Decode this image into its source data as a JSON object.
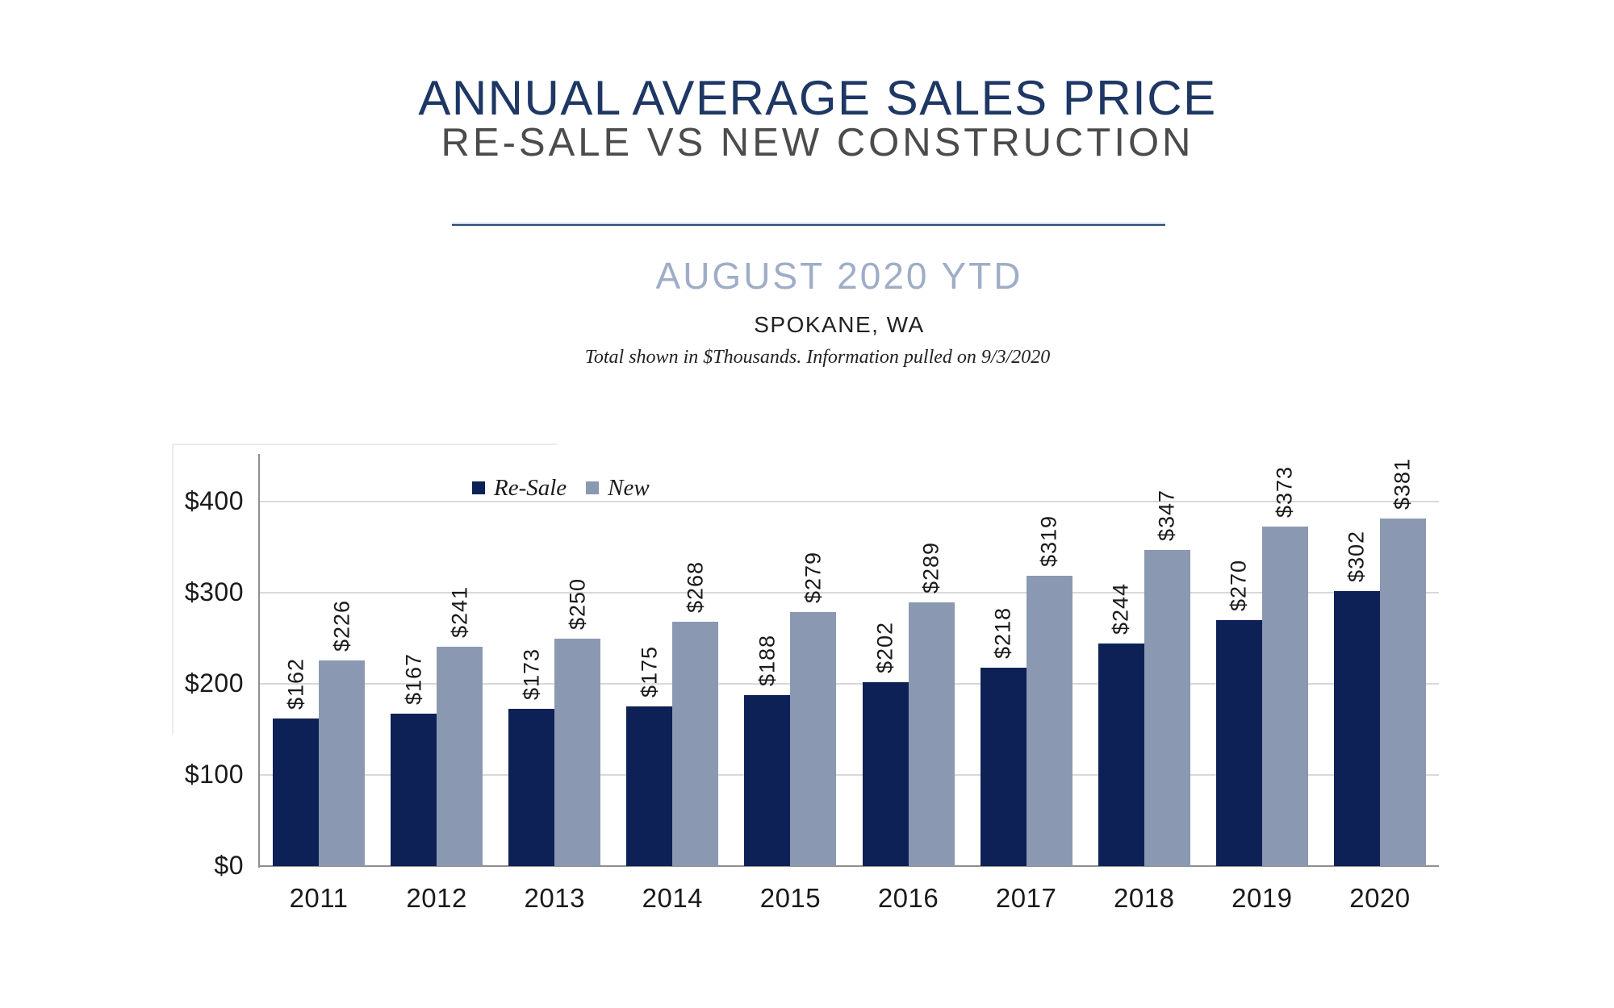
{
  "header": {
    "title": "ANNUAL AVERAGE SALES PRICE",
    "subtitle": "RE-SALE VS NEW CONSTRUCTION",
    "period": "AUGUST 2020 YTD",
    "location": "SPOKANE, WA",
    "note": "Total shown in $Thousands. Information pulled on 9/3/2020"
  },
  "legend": {
    "items": [
      {
        "label": "Re-Sale",
        "color": "#0e2156"
      },
      {
        "label": "New",
        "color": "#8a99b1"
      }
    ]
  },
  "colors": {
    "title": "#1e3764",
    "subtitle": "#4b4b4b",
    "period": "#9fadc7",
    "divider": "#2a4a78",
    "grid": "#d9d9d9",
    "axis": "#8f8f8f",
    "tick_text": "#1a1a1a",
    "bar_resale": "#0e2156",
    "bar_new": "#8a99b1"
  },
  "chart_data": {
    "type": "bar",
    "title": "ANNUAL AVERAGE SALES PRICE",
    "subtitle": "RE-SALE VS NEW CONSTRUCTION",
    "period": "AUGUST 2020 YTD",
    "region": "SPOKANE, WA",
    "units_note": "Total shown in $Thousands. Information pulled on 9/3/2020",
    "categories": [
      "2011",
      "2012",
      "2013",
      "2014",
      "2015",
      "2016",
      "2017",
      "2018",
      "2019",
      "2020"
    ],
    "series": [
      {
        "name": "Re-Sale",
        "color": "#0e2156",
        "values": [
          162,
          167,
          173,
          175,
          188,
          202,
          218,
          244,
          270,
          302
        ],
        "labels": [
          "$162",
          "$167",
          "$173",
          "$175",
          "$188",
          "$202",
          "$218",
          "$244",
          "$270",
          "$302"
        ]
      },
      {
        "name": "New",
        "color": "#8a99b1",
        "values": [
          226,
          241,
          250,
          268,
          279,
          289,
          319,
          347,
          373,
          381
        ],
        "labels": [
          "$226",
          "$241",
          "$250",
          "$268",
          "$279",
          "$289",
          "$319",
          "$347",
          "$373",
          "$381"
        ]
      }
    ],
    "y_axis": {
      "ticks": [
        {
          "value": 0,
          "label": "$0"
        },
        {
          "value": 100,
          "label": "$100"
        },
        {
          "value": 200,
          "label": "$200"
        },
        {
          "value": 300,
          "label": "$300"
        },
        {
          "value": 400,
          "label": "$400"
        }
      ],
      "range": [
        0,
        452
      ]
    },
    "xlabel": "",
    "ylabel": "",
    "grid": true,
    "legend_position": "inside-top-left",
    "data_labels": "rotated-90-outside-end"
  }
}
